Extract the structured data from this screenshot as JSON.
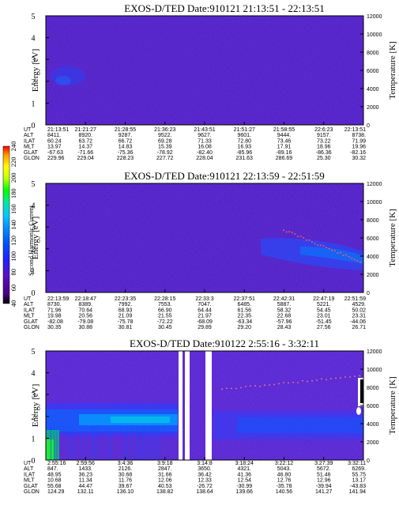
{
  "chart_data": [
    {
      "type": "heatmap",
      "title": "EXOS-D/TED   Date:910121  21:13:51 - 22:13:51",
      "ylabel": "Energy [eV]",
      "y2label": "Temperature [K]",
      "ylim": [
        0,
        5
      ],
      "y2lim": [
        0,
        12000
      ],
      "yticks": [
        "0",
        "1",
        "2",
        "3",
        "4",
        "5"
      ],
      "y2ticks": [
        "0",
        "2000",
        "4000",
        "6000",
        "8000",
        "10000",
        "12000"
      ],
      "row_labels": [
        "UT",
        "ALT",
        "ILAT",
        "MLT",
        "GLAT",
        "GLON"
      ],
      "columns": [
        [
          "21:13:51",
          "8411.",
          "60.24",
          "13.97",
          "-67.63",
          "229.96"
        ],
        [
          "21:21:27",
          "8920.",
          "63.72",
          "14.37",
          "-71.66",
          "229.04"
        ],
        [
          "21:28:55",
          "9287.",
          "66.72",
          "14.83",
          "-75.36",
          "228.23"
        ],
        [
          "21:36:23",
          "9522.",
          "69.28",
          "15.39",
          "-78.92",
          "227.72"
        ],
        [
          "21:43:51",
          "9627.",
          "71.33",
          "16.08",
          "-82.40",
          "228.04"
        ],
        [
          "21:51:27",
          "9601.",
          "72.80",
          "16.93",
          "-85.96",
          "231.63"
        ],
        [
          "21:58:55",
          "9444.",
          "73.46",
          "17.91",
          "-89.16",
          "286.69"
        ],
        [
          "22:6:23",
          "9157.",
          "73.22",
          "18.96",
          "-86.36",
          "25.30"
        ],
        [
          "22:13:51",
          "8738.",
          "71.99",
          "19.96",
          "-82.16",
          "30.32"
        ]
      ]
    },
    {
      "type": "heatmap",
      "title": "EXOS-D/TED   Date:910121  22:13:59 - 22:51:59",
      "ylabel": "Energy [eV]",
      "y2label": "Temperature [K]",
      "ylim": [
        0,
        5
      ],
      "y2lim": [
        0,
        12000
      ],
      "yticks": [
        "0",
        "1",
        "2",
        "3",
        "4",
        "5"
      ],
      "y2ticks": [
        "0",
        "2000",
        "4000",
        "6000",
        "8000",
        "10000",
        "12000"
      ],
      "row_labels": [
        "UT",
        "ALT",
        "ILAT",
        "MLT",
        "GLAT",
        "GLON"
      ],
      "columns": [
        [
          "22:13:59",
          "8730.",
          "71.96",
          "19.98",
          "-82.08",
          "30.35"
        ],
        [
          "22:18:47",
          "8389.",
          "70.64",
          "20.56",
          "-79.08",
          "30.88"
        ],
        [
          "22:23:35",
          "7992.",
          "68.93",
          "21.09",
          "-75.78",
          "30.81"
        ],
        [
          "22:28:15",
          "7553.",
          "66.90",
          "21.55",
          "-72.22",
          "30.45"
        ],
        [
          "22:33:3",
          "7047.",
          "64.44",
          "21.97",
          "-68.09",
          "29.89"
        ],
        [
          "22:37:51",
          "6485.",
          "61.56",
          "22.35",
          "-63.34",
          "29.20"
        ],
        [
          "22:42:31",
          "5887.",
          "58.32",
          "22.68",
          "-57.96",
          "28.43"
        ],
        [
          "22:47:19",
          "5221.",
          "54.45",
          "23.01",
          "-51.45",
          "27.56"
        ],
        [
          "22:51:59",
          "4529.",
          "50.02",
          "23.31",
          "-44.06",
          "26.71"
        ]
      ]
    },
    {
      "type": "heatmap",
      "title": "EXOS-D/TED   Date:910122  2:55:16 - 3:32:11",
      "ylabel": "Energy [eV]",
      "y2label": "Temperature [K]",
      "ylim": [
        0,
        5
      ],
      "y2lim": [
        0,
        12000
      ],
      "yticks": [
        "0",
        "1",
        "2",
        "3",
        "4",
        "5"
      ],
      "y2ticks": [
        "0",
        "2000",
        "4000",
        "6000",
        "8000",
        "10000",
        "12000"
      ],
      "row_labels": [
        "UT",
        "ALT",
        "ILAT",
        "MLT",
        "GLAT",
        "GLON"
      ],
      "columns": [
        [
          "2:55:16",
          "847.",
          "48.95",
          "10.68",
          "55.68",
          "124.29"
        ],
        [
          "2:59:56",
          "1433.",
          "36.23",
          "11.34",
          "44.47",
          "132.11"
        ],
        [
          "3:4:36",
          "2126.",
          "30.68",
          "11.76",
          "39.67",
          "136.10"
        ],
        [
          "3:9:18",
          "2847.",
          "31.66",
          "12.06",
          "40.53",
          "138.82"
        ],
        [
          "3:14:8",
          "3650.",
          "36.42",
          "12.33",
          "-26.72",
          "138.64"
        ],
        [
          "3:18:24",
          "4321.",
          "41.36",
          "12.54",
          "-30.99",
          "139.66"
        ],
        [
          "3:22:12",
          "5043.",
          "46.80",
          "12.76",
          "-35.78",
          "140.56"
        ],
        [
          "3:27:39",
          "5672.",
          "51.46",
          "12.96",
          "-39.94",
          "141.27"
        ],
        [
          "3:32:11",
          "6269.",
          "55.75",
          "13.17",
          "-43.83",
          "141.94"
        ]
      ]
    }
  ],
  "colorbar": {
    "label": "Second Harmonic Current",
    "ticks": [
      "40",
      "60",
      "80",
      "100",
      "120",
      "140",
      "160",
      "180",
      "200",
      "220",
      "240"
    ],
    "colors": [
      "#000000",
      "#4b0082",
      "#5a10c8",
      "#2020ff",
      "#0050ff",
      "#0090ff",
      "#00c8ff",
      "#00e8a0",
      "#00ff00",
      "#c8ff00",
      "#ffff00",
      "#ffa000",
      "#ff0000"
    ]
  }
}
